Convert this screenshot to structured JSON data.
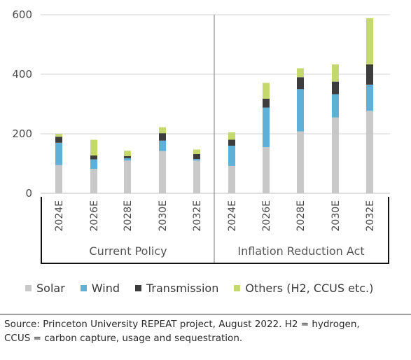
{
  "chart_data": {
    "type": "bar",
    "stacked": true,
    "title": "",
    "ylabel": "",
    "ylim": [
      0,
      600
    ],
    "yticks": [
      0,
      200,
      400,
      600
    ],
    "grid": true,
    "groups": [
      {
        "name": "Current Policy",
        "categories": [
          "2024E",
          "2026E",
          "2028E",
          "2030E",
          "2032E"
        ]
      },
      {
        "name": "Inflation Reduction Act",
        "categories": [
          "2024E",
          "2026E",
          "2028E",
          "2030E",
          "2032E"
        ]
      }
    ],
    "categories": [
      "2024E",
      "2026E",
      "2028E",
      "2030E",
      "2032E",
      "2024E",
      "2026E",
      "2028E",
      "2030E",
      "2032E"
    ],
    "series": [
      {
        "name": "Solar",
        "color": "#c8c8c8",
        "values": [
          95,
          82,
          110,
          142,
          110,
          92,
          155,
          208,
          255,
          277
        ]
      },
      {
        "name": "Wind",
        "color": "#5eb0d8",
        "values": [
          75,
          32,
          8,
          35,
          5,
          68,
          133,
          142,
          78,
          88
        ]
      },
      {
        "name": "Transmission",
        "color": "#3d3d3d",
        "values": [
          20,
          13,
          7,
          25,
          17,
          20,
          30,
          40,
          42,
          68
        ]
      },
      {
        "name": "Others (H2, CCUS etc.)",
        "color": "#c5d86d",
        "values": [
          10,
          53,
          18,
          20,
          15,
          25,
          53,
          30,
          58,
          155
        ]
      }
    ],
    "legend_position": "bottom"
  },
  "footer": {
    "source_line1": "Source: Princeton University REPEAT project, August 2022. H2 = hydrogen,",
    "source_line2": "CCUS = carbon capture, usage and sequestration."
  }
}
